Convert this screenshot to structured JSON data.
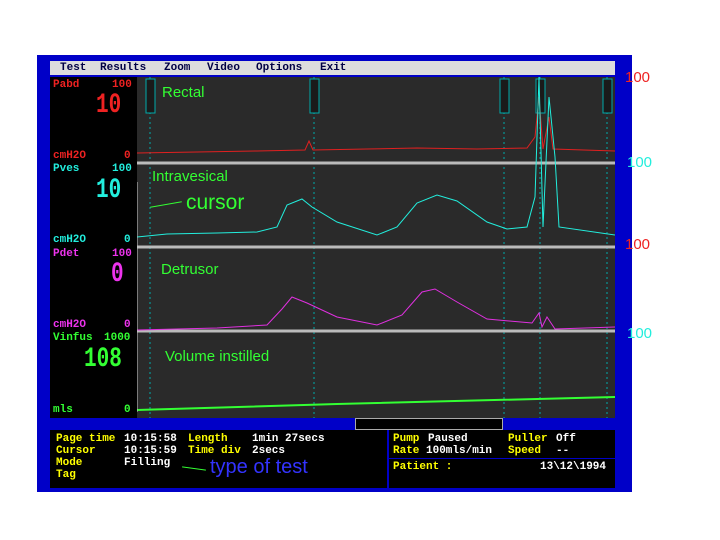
{
  "menu": [
    "Test",
    "Results",
    "Zoom",
    "Video",
    "Options",
    "Exit"
  ],
  "channels": [
    {
      "name": "Pabd",
      "scale_max": "100",
      "reading": "10",
      "unit": "cmH2O",
      "scale_min": "0"
    },
    {
      "name": "Pves",
      "scale_max": "100",
      "reading": "10",
      "unit": "cmH2O",
      "scale_min": "0"
    },
    {
      "name": "Pdet",
      "scale_max": "100",
      "reading": "0",
      "unit": "cmH2O",
      "scale_min": "0"
    },
    {
      "name": "Vinfus",
      "scale_max": "1000",
      "reading": "108",
      "unit": "mls",
      "scale_min": "0"
    }
  ],
  "right_scales": [
    "100",
    "100",
    "100",
    "100"
  ],
  "annotations": {
    "rectal": "Rectal",
    "intravesical": "Intravesical",
    "cursor": "cursor",
    "detrusor": "Detrusor",
    "volume": "Volume instilled",
    "test_type": "type of test"
  },
  "status": {
    "left": [
      [
        "Page time",
        "10:15:58",
        "Length",
        "1min 27secs"
      ],
      [
        "Cursor",
        "10:15:59",
        "Time div",
        "2secs"
      ],
      [
        "Mode",
        "Filling"
      ],
      [
        "Tag"
      ]
    ],
    "right": [
      [
        "Pump",
        "Paused",
        "Puller",
        "Off"
      ],
      [
        "Rate",
        "100mls/min",
        "Speed",
        "--"
      ],
      [
        "Patient :"
      ]
    ],
    "date": "13\\12\\1994"
  }
}
